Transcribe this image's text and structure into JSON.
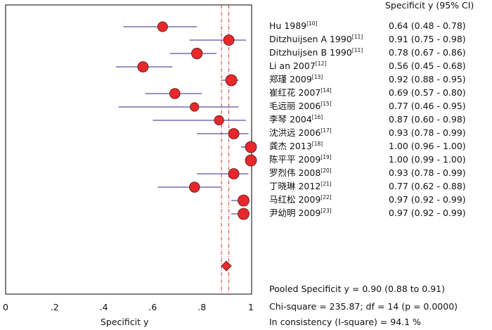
{
  "chart_data": {
    "type": "forest",
    "column_header": "Specificit y (95% CI)",
    "xlabel": "Specificit y",
    "xlim": [
      0,
      1
    ],
    "xticks": [
      "0",
      ".2",
      ".4",
      ".6",
      ".8",
      "1"
    ],
    "pooled": {
      "estimate": 0.9,
      "ci_low": 0.88,
      "ci_high": 0.91
    },
    "studies": [
      {
        "name": "Hu 1989",
        "ref": "[10]",
        "value": 0.64,
        "ci_low": 0.48,
        "ci_high": 0.78,
        "ci_text": "0.64 (0.48 - 0.78)"
      },
      {
        "name": "Ditzhuijsen A 1990",
        "ref": "[11]",
        "value": 0.91,
        "ci_low": 0.75,
        "ci_high": 0.98,
        "ci_text": "0.91 (0.75 - 0.98)"
      },
      {
        "name": "Ditzhuijsen B 1990",
        "ref": "[11]",
        "value": 0.78,
        "ci_low": 0.67,
        "ci_high": 0.86,
        "ci_text": "0.78 (0.67 - 0.86)"
      },
      {
        "name": "Li an 2007",
        "ref": "[12]",
        "value": 0.56,
        "ci_low": 0.45,
        "ci_high": 0.68,
        "ci_text": "0.56 (0.45 - 0.68)"
      },
      {
        "name": "郑瑾 2009",
        "ref": "[13]",
        "value": 0.92,
        "ci_low": 0.88,
        "ci_high": 0.95,
        "ci_text": "0.92 (0.88 - 0.95)"
      },
      {
        "name": "崔红花 2007",
        "ref": "[14]",
        "value": 0.69,
        "ci_low": 0.57,
        "ci_high": 0.8,
        "ci_text": "0.69 (0.57 - 0.80)"
      },
      {
        "name": "毛远丽 2006",
        "ref": "[15]",
        "value": 0.77,
        "ci_low": 0.46,
        "ci_high": 0.95,
        "ci_text": "0.77 (0.46 - 0.95)"
      },
      {
        "name": "李琴 2004",
        "ref": "[16]",
        "value": 0.87,
        "ci_low": 0.6,
        "ci_high": 0.98,
        "ci_text": "0.87 (0.60 - 0.98)"
      },
      {
        "name": "沈洪远 2006",
        "ref": "[17]",
        "value": 0.93,
        "ci_low": 0.78,
        "ci_high": 0.99,
        "ci_text": "0.93 (0.78 - 0.99)"
      },
      {
        "name": "龚杰 2013",
        "ref": "[18]",
        "value": 1.0,
        "ci_low": 0.96,
        "ci_high": 1.0,
        "ci_text": "1.00 (0.96 - 1.00)"
      },
      {
        "name": "陈平平 2009",
        "ref": "[19]",
        "value": 1.0,
        "ci_low": 0.99,
        "ci_high": 1.0,
        "ci_text": "1.00 (0.99 - 1.00)"
      },
      {
        "name": "罗烈伟 2008",
        "ref": "[20]",
        "value": 0.93,
        "ci_low": 0.78,
        "ci_high": 0.99,
        "ci_text": "0.93 (0.78 - 0.99)"
      },
      {
        "name": "丁晓琳 2012",
        "ref": "[21]",
        "value": 0.77,
        "ci_low": 0.62,
        "ci_high": 0.88,
        "ci_text": "0.77 (0.62 - 0.88)"
      },
      {
        "name": "马红松 2009",
        "ref": "[22]",
        "value": 0.97,
        "ci_low": 0.92,
        "ci_high": 0.99,
        "ci_text": "0.97 (0.92 - 0.99)"
      },
      {
        "name": "尹幼明 2009",
        "ref": "[23]",
        "value": 0.97,
        "ci_low": 0.92,
        "ci_high": 0.99,
        "ci_text": "0.97 (0.92 - 0.99)"
      }
    ],
    "summary_lines": [
      "Pooled Specificit y = 0.90 (0.88 to 0.91)",
      "Chi-square = 235.87; df =  14 (p = 0.0000)",
      "In consistency (I-square) = 94.1 %"
    ]
  },
  "colors": {
    "marker_fill": "#e8282a",
    "marker_stroke": "#4d1a1a",
    "ci_line": "#2b2a8c",
    "ref_line": "#d9362b",
    "axis": "#000000"
  }
}
